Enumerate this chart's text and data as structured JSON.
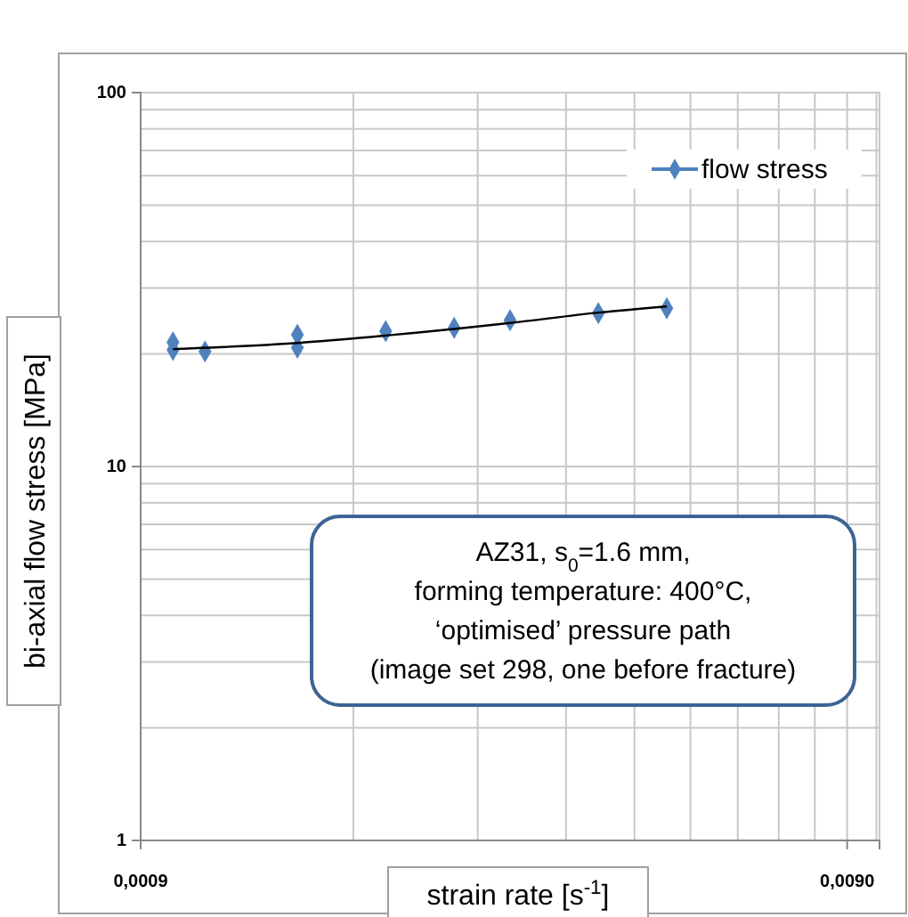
{
  "chart_data": {
    "type": "scatter",
    "xlabel": "strain rate [s$^{-1}$]",
    "ylabel": "bi-axial flow stress [MPa]",
    "log": "xy",
    "xlim": [
      0.0009,
      0.01
    ],
    "ylim": [
      1,
      100
    ],
    "xticks": [
      {
        "value": 0.0009,
        "label": "0,0009"
      },
      {
        "value": 0.009,
        "label": "0,0090"
      }
    ],
    "yticks": [
      1,
      10,
      100
    ],
    "grid": true,
    "legend": "top right",
    "marker": "diamond",
    "series": [
      {
        "name": "flow stress",
        "color": "#4f81bd",
        "x": [
          0.001,
          0.001,
          0.00111,
          0.0015,
          0.0015,
          0.002,
          0.0025,
          0.003,
          0.004,
          0.005
        ],
        "values": [
          21.5,
          20.5,
          20.3,
          22.5,
          20.8,
          23,
          23.5,
          24.6,
          25.7,
          26.5
        ]
      },
      {
        "type": "line",
        "color": "#000000",
        "marker": "none",
        "x": [
          0.001,
          0.0015,
          0.002,
          0.003,
          0.004,
          0.005
        ],
        "values": [
          20.6,
          21.4,
          22.4,
          24.2,
          25.8,
          26.8
        ]
      }
    ],
    "annotations": [
      "AZ31, s$_{0}$=1.6 mm,",
      "forming temperature: 400°C,",
      "‘optimised’ pressure path",
      "(image set 298, one before fracture)"
    ]
  }
}
